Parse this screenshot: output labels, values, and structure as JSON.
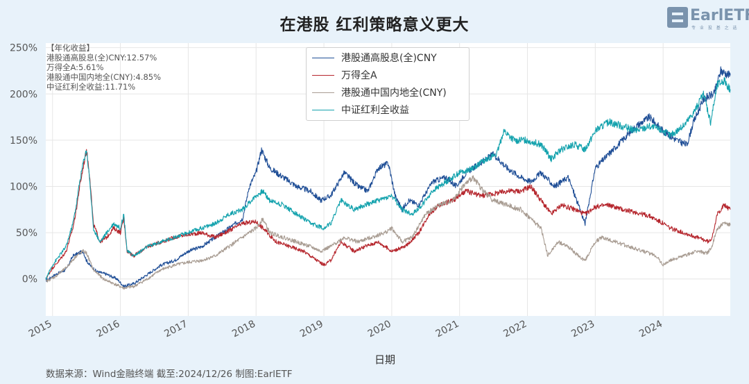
{
  "title": "在港股 红利策略意义更大",
  "logo": {
    "text": "EarlETF",
    "sub": "专 业 投 基 之 选"
  },
  "annual_returns": {
    "heading": "【年化收益】",
    "lines": [
      "港股通高股息(全)CNY:12.57%",
      "万得全A:5.61%",
      "港股通中国内地全(CNY):4.85%",
      "中证红利全收益:11.71%"
    ]
  },
  "source": "数据来源：Wind金融终端 截至:2024/12/26 制图:EarlETF",
  "chart_data": {
    "type": "line",
    "xlabel": "日期",
    "ylabel": "",
    "ylim": [
      -40,
      255
    ],
    "xlim": [
      2014.9,
      2024.99
    ],
    "ytick_values": [
      0,
      50,
      100,
      150,
      200,
      250
    ],
    "ytick_labels": [
      "0%",
      "50%",
      "100%",
      "150%",
      "200%",
      "250%"
    ],
    "xtick_values": [
      2015,
      2016,
      2017,
      2018,
      2019,
      2020,
      2021,
      2022,
      2023,
      2024
    ],
    "xtick_labels": [
      "2015",
      "2016",
      "2017",
      "2018",
      "2019",
      "2020",
      "2021",
      "2022",
      "2023",
      "2024"
    ],
    "grid": true,
    "legend_position": "top-center",
    "series": [
      {
        "name": "港股通高股息(全)CNY",
        "color": "#1f4e96",
        "x": [
          2014.9,
          2015.05,
          2015.2,
          2015.3,
          2015.45,
          2015.5,
          2015.55,
          2015.65,
          2015.8,
          2015.95,
          2016.05,
          2016.2,
          2016.4,
          2016.6,
          2016.8,
          2017.0,
          2017.2,
          2017.4,
          2017.6,
          2017.8,
          2017.9,
          2018.0,
          2018.08,
          2018.2,
          2018.4,
          2018.6,
          2018.8,
          2018.95,
          2019.1,
          2019.3,
          2019.5,
          2019.65,
          2019.8,
          2019.95,
          2020.05,
          2020.15,
          2020.25,
          2020.4,
          2020.6,
          2020.8,
          2020.95,
          2021.1,
          2021.3,
          2021.5,
          2021.7,
          2021.9,
          2022.05,
          2022.2,
          2022.4,
          2022.6,
          2022.75,
          2022.85,
          2023.0,
          2023.2,
          2023.4,
          2023.6,
          2023.8,
          2024.0,
          2024.2,
          2024.35,
          2024.45,
          2024.6,
          2024.75,
          2024.85,
          2024.99
        ],
        "values": [
          -2,
          5,
          10,
          25,
          30,
          20,
          15,
          8,
          5,
          0,
          -8,
          -5,
          5,
          15,
          20,
          30,
          35,
          45,
          55,
          65,
          100,
          115,
          140,
          120,
          110,
          100,
          95,
          85,
          90,
          115,
          100,
          95,
          120,
          125,
          90,
          75,
          85,
          80,
          105,
          110,
          100,
          115,
          125,
          135,
          120,
          110,
          105,
          115,
          100,
          110,
          80,
          60,
          120,
          135,
          150,
          165,
          175,
          160,
          150,
          145,
          170,
          195,
          200,
          225,
          220
        ]
      },
      {
        "name": "万得全A",
        "color": "#b5252c",
        "x": [
          2014.9,
          2015.0,
          2015.1,
          2015.2,
          2015.3,
          2015.35,
          2015.4,
          2015.45,
          2015.5,
          2015.55,
          2015.6,
          2015.7,
          2015.8,
          2015.9,
          2016.0,
          2016.05,
          2016.1,
          2016.2,
          2016.4,
          2016.6,
          2016.8,
          2017.0,
          2017.2,
          2017.4,
          2017.6,
          2017.8,
          2018.0,
          2018.1,
          2018.3,
          2018.5,
          2018.7,
          2018.9,
          2019.0,
          2019.1,
          2019.25,
          2019.45,
          2019.6,
          2019.8,
          2020.0,
          2020.2,
          2020.4,
          2020.55,
          2020.7,
          2020.9,
          2021.0,
          2021.1,
          2021.3,
          2021.5,
          2021.7,
          2021.9,
          2022.05,
          2022.2,
          2022.35,
          2022.5,
          2022.7,
          2022.85,
          2023.0,
          2023.2,
          2023.4,
          2023.6,
          2023.8,
          2024.0,
          2024.1,
          2024.3,
          2024.5,
          2024.68,
          2024.72,
          2024.8,
          2024.9,
          2024.99
        ],
        "values": [
          0,
          12,
          20,
          30,
          55,
          75,
          100,
          120,
          140,
          110,
          60,
          40,
          45,
          55,
          50,
          65,
          30,
          25,
          35,
          40,
          45,
          48,
          50,
          45,
          52,
          60,
          62,
          55,
          40,
          35,
          30,
          20,
          15,
          20,
          40,
          30,
          35,
          40,
          30,
          35,
          50,
          70,
          80,
          85,
          90,
          95,
          90,
          92,
          95,
          95,
          100,
          85,
          70,
          80,
          75,
          70,
          78,
          80,
          75,
          72,
          68,
          60,
          55,
          50,
          45,
          40,
          45,
          70,
          80,
          75
        ]
      },
      {
        "name": "港股通中国内地全(CNY)",
        "color": "#a89c92",
        "x": [
          2014.9,
          2015.05,
          2015.2,
          2015.35,
          2015.45,
          2015.5,
          2015.6,
          2015.75,
          2015.9,
          2016.05,
          2016.2,
          2016.4,
          2016.6,
          2016.8,
          2017.0,
          2017.2,
          2017.4,
          2017.6,
          2017.8,
          2018.0,
          2018.1,
          2018.2,
          2018.4,
          2018.6,
          2018.8,
          2018.95,
          2019.1,
          2019.3,
          2019.5,
          2019.7,
          2019.9,
          2020.0,
          2020.15,
          2020.3,
          2020.5,
          2020.7,
          2020.9,
          2021.05,
          2021.2,
          2021.35,
          2021.5,
          2021.7,
          2021.9,
          2022.05,
          2022.2,
          2022.3,
          2022.45,
          2022.6,
          2022.75,
          2022.85,
          2023.0,
          2023.1,
          2023.3,
          2023.5,
          2023.7,
          2023.9,
          2024.0,
          2024.1,
          2024.3,
          2024.5,
          2024.65,
          2024.72,
          2024.8,
          2024.9,
          2024.99
        ],
        "values": [
          -3,
          3,
          12,
          25,
          30,
          28,
          10,
          0,
          -5,
          -10,
          -8,
          0,
          10,
          15,
          18,
          20,
          25,
          35,
          45,
          55,
          65,
          50,
          45,
          40,
          35,
          30,
          35,
          45,
          40,
          45,
          50,
          55,
          40,
          45,
          70,
          80,
          85,
          100,
          110,
          95,
          85,
          80,
          75,
          65,
          55,
          25,
          40,
          35,
          25,
          20,
          40,
          45,
          40,
          35,
          30,
          25,
          15,
          20,
          25,
          30,
          28,
          35,
          55,
          60,
          58
        ]
      },
      {
        "name": "中证红利全收益",
        "color": "#13a2ad",
        "x": [
          2014.9,
          2015.0,
          2015.1,
          2015.2,
          2015.3,
          2015.35,
          2015.4,
          2015.45,
          2015.5,
          2015.55,
          2015.6,
          2015.7,
          2015.8,
          2015.9,
          2016.0,
          2016.05,
          2016.1,
          2016.2,
          2016.4,
          2016.6,
          2016.8,
          2017.0,
          2017.2,
          2017.4,
          2017.6,
          2017.8,
          2018.0,
          2018.1,
          2018.2,
          2018.4,
          2018.6,
          2018.8,
          2019.0,
          2019.1,
          2019.25,
          2019.45,
          2019.6,
          2019.8,
          2020.0,
          2020.15,
          2020.3,
          2020.45,
          2020.6,
          2020.8,
          2021.0,
          2021.2,
          2021.4,
          2021.55,
          2021.65,
          2021.8,
          2022.0,
          2022.2,
          2022.35,
          2022.5,
          2022.7,
          2022.85,
          2023.0,
          2023.2,
          2023.4,
          2023.6,
          2023.8,
          2024.0,
          2024.1,
          2024.3,
          2024.45,
          2024.6,
          2024.7,
          2024.8,
          2024.9,
          2024.99
        ],
        "values": [
          0,
          15,
          25,
          35,
          60,
          80,
          105,
          125,
          140,
          105,
          55,
          40,
          50,
          60,
          55,
          70,
          30,
          25,
          35,
          40,
          45,
          50,
          55,
          60,
          70,
          75,
          90,
          95,
          85,
          80,
          70,
          60,
          55,
          60,
          85,
          75,
          80,
          85,
          90,
          75,
          70,
          80,
          95,
          105,
          115,
          120,
          130,
          135,
          160,
          150,
          150,
          145,
          130,
          140,
          145,
          140,
          160,
          170,
          165,
          160,
          165,
          160,
          155,
          165,
          180,
          200,
          170,
          210,
          215,
          205
        ]
      }
    ]
  }
}
